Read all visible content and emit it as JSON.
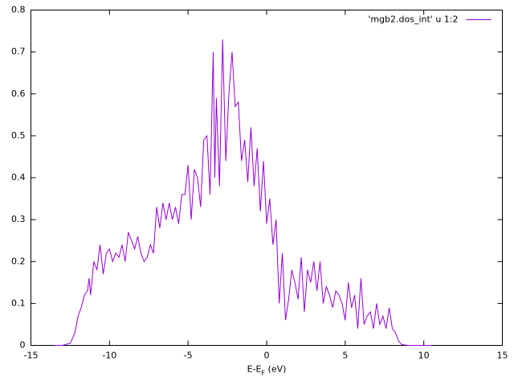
{
  "chart_data": {
    "type": "line",
    "xlabel": [
      "E-E",
      "F",
      " (eV)"
    ],
    "xlim": [
      -15,
      15
    ],
    "xticks": [
      -15,
      -10,
      -5,
      0,
      5,
      10,
      15
    ],
    "ylim": [
      0,
      0.8
    ],
    "yticks": [
      0,
      0.1,
      0.2,
      0.3,
      0.4,
      0.5,
      0.6,
      0.7,
      0.8
    ],
    "grid": false,
    "legend": "top-right",
    "series": [
      {
        "name": "'mgb2.dos_int' u 1:2",
        "color": "#9400d3",
        "x": [
          -13.5,
          -13,
          -12.5,
          -12.2,
          -12,
          -11.8,
          -11.6,
          -11.4,
          -11.3,
          -11.2,
          -11,
          -10.8,
          -10.6,
          -10.4,
          -10.2,
          -10,
          -9.8,
          -9.6,
          -9.4,
          -9.2,
          -9,
          -8.8,
          -8.6,
          -8.4,
          -8.2,
          -8,
          -7.8,
          -7.6,
          -7.4,
          -7.2,
          -7,
          -6.8,
          -6.6,
          -6.4,
          -6.2,
          -6,
          -5.8,
          -5.6,
          -5.4,
          -5.2,
          -5,
          -4.8,
          -4.6,
          -4.4,
          -4.2,
          -4,
          -3.8,
          -3.6,
          -3.4,
          -3.3,
          -3.2,
          -3,
          -2.8,
          -2.6,
          -2.4,
          -2.2,
          -2,
          -1.8,
          -1.6,
          -1.4,
          -1.2,
          -1,
          -0.8,
          -0.6,
          -0.4,
          -0.2,
          0,
          0.2,
          0.4,
          0.6,
          0.8,
          1,
          1.2,
          1.4,
          1.6,
          1.8,
          2,
          2.2,
          2.4,
          2.6,
          2.8,
          3,
          3.2,
          3.4,
          3.6,
          3.8,
          4,
          4.2,
          4.4,
          4.6,
          4.8,
          5,
          5.2,
          5.4,
          5.6,
          5.8,
          6,
          6.2,
          6.4,
          6.6,
          6.8,
          7,
          7.2,
          7.4,
          7.6,
          7.8,
          8,
          8.2,
          8.4,
          8.6,
          9,
          10,
          10.5
        ],
        "values": [
          0,
          0,
          0.005,
          0.03,
          0.07,
          0.09,
          0.12,
          0.13,
          0.16,
          0.12,
          0.2,
          0.18,
          0.24,
          0.17,
          0.22,
          0.23,
          0.2,
          0.22,
          0.21,
          0.24,
          0.2,
          0.27,
          0.25,
          0.23,
          0.26,
          0.22,
          0.2,
          0.21,
          0.24,
          0.22,
          0.33,
          0.28,
          0.34,
          0.3,
          0.34,
          0.3,
          0.33,
          0.29,
          0.36,
          0.36,
          0.43,
          0.3,
          0.42,
          0.4,
          0.33,
          0.49,
          0.5,
          0.36,
          0.7,
          0.4,
          0.59,
          0.38,
          0.73,
          0.44,
          0.6,
          0.7,
          0.57,
          0.58,
          0.44,
          0.49,
          0.39,
          0.52,
          0.38,
          0.47,
          0.32,
          0.44,
          0.29,
          0.35,
          0.24,
          0.3,
          0.1,
          0.22,
          0.06,
          0.11,
          0.18,
          0.15,
          0.11,
          0.21,
          0.08,
          0.18,
          0.15,
          0.2,
          0.13,
          0.2,
          0.1,
          0.14,
          0.12,
          0.09,
          0.13,
          0.12,
          0.1,
          0.06,
          0.15,
          0.09,
          0.12,
          0.04,
          0.16,
          0.05,
          0.07,
          0.08,
          0.04,
          0.1,
          0.05,
          0.07,
          0.04,
          0.09,
          0.04,
          0.03,
          0.01,
          0.002,
          0,
          0,
          0
        ]
      }
    ]
  }
}
